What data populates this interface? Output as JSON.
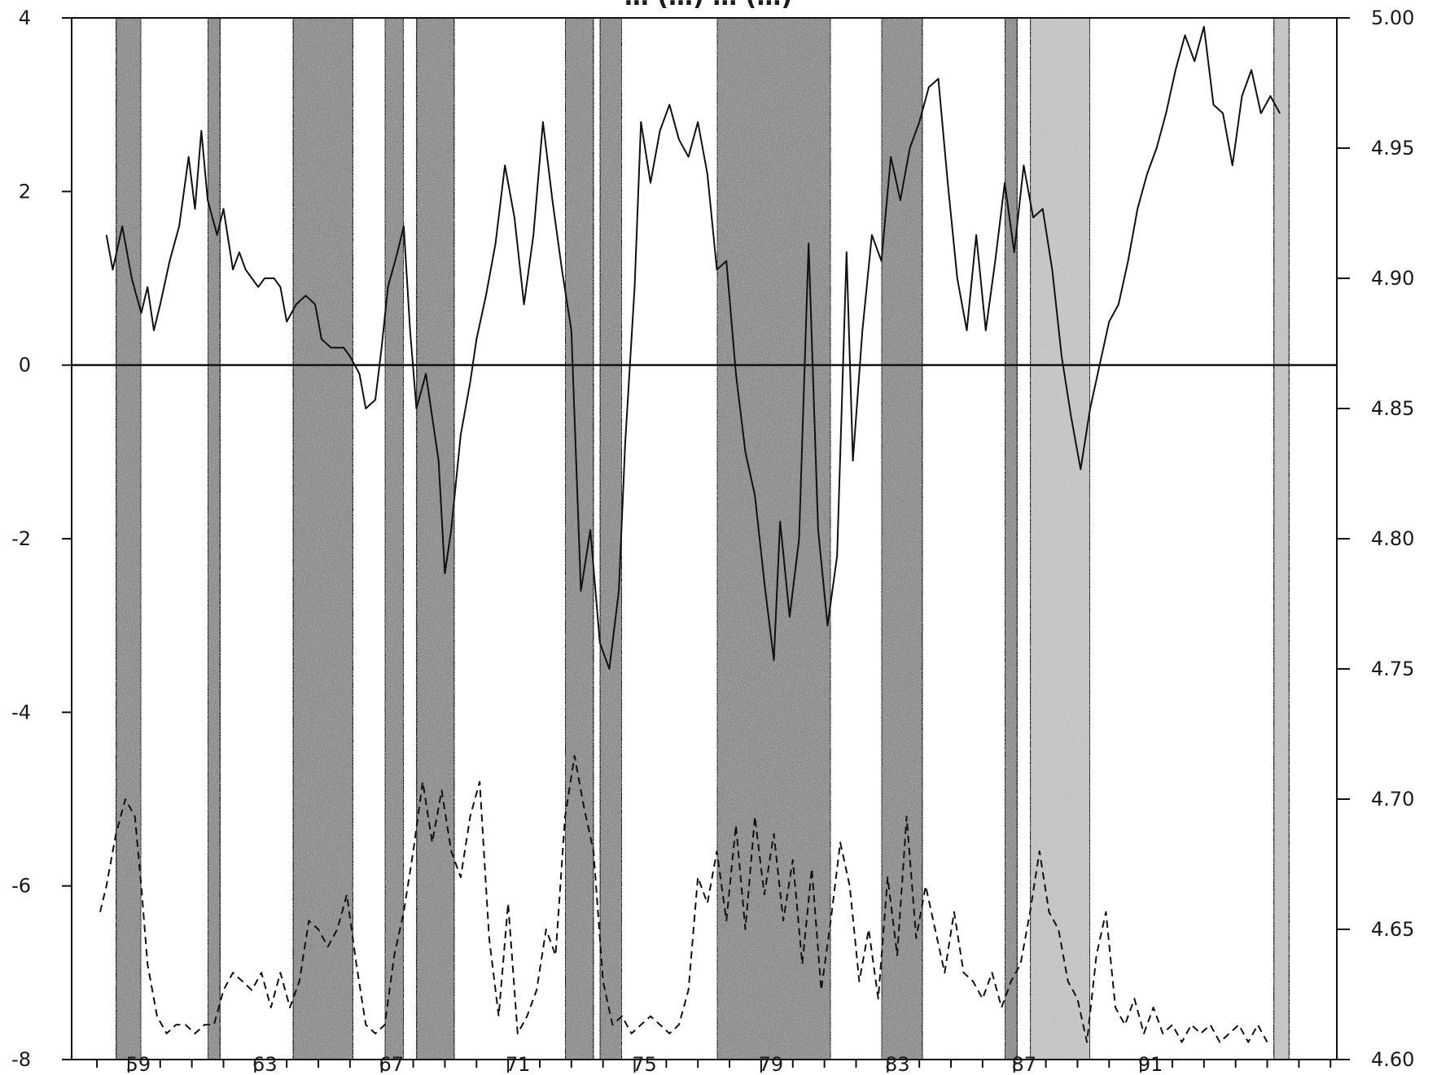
{
  "chart_data": {
    "type": "line",
    "title": "… (…) … (…)",
    "left_axis": {
      "ylim": [
        -8,
        4
      ],
      "ticks": [
        4,
        2,
        0,
        -2,
        -4,
        -6,
        -8
      ],
      "tick_labels": [
        "4",
        "2",
        "0",
        "-2",
        "-4",
        "-6",
        "-8"
      ]
    },
    "right_axis": {
      "ylim": [
        4.6,
        5.0
      ],
      "ticks": [
        5.0,
        4.95,
        4.9,
        4.85,
        4.8,
        4.75,
        4.7,
        4.65,
        4.6
      ],
      "tick_labels": [
        "5.00",
        "4.95",
        "4.90",
        "4.85",
        "4.80",
        "4.75",
        "4.70",
        "4.65",
        "4.60"
      ]
    },
    "x_axis": {
      "xlim": [
        57.2,
        97.2
      ],
      "ticks": [
        59,
        63,
        67,
        71,
        75,
        79,
        83,
        87,
        91
      ],
      "tick_labels": [
        "59",
        "63",
        "67",
        "71",
        "75",
        "79",
        "83",
        "87",
        "91"
      ]
    },
    "zero_line": 0,
    "grid": false,
    "legend": "none",
    "colors": {
      "solid_series": "#111111",
      "dashed_series": "#111111",
      "band_light": "#c8c8c8",
      "band_dark": "#8a8a8a"
    },
    "shaded_bands": [
      {
        "start": 58.6,
        "end": 59.4,
        "tone": "dark"
      },
      {
        "start": 61.5,
        "end": 61.9,
        "tone": "dark"
      },
      {
        "start": 64.2,
        "end": 66.1,
        "tone": "dark"
      },
      {
        "start": 67.1,
        "end": 67.7,
        "tone": "dark"
      },
      {
        "start": 68.1,
        "end": 69.3,
        "tone": "dark"
      },
      {
        "start": 72.8,
        "end": 73.7,
        "tone": "dark"
      },
      {
        "start": 73.9,
        "end": 74.6,
        "tone": "dark"
      },
      {
        "start": 77.6,
        "end": 81.2,
        "tone": "dark"
      },
      {
        "start": 82.8,
        "end": 84.1,
        "tone": "dark"
      },
      {
        "start": 86.7,
        "end": 87.1,
        "tone": "dark"
      },
      {
        "start": 87.5,
        "end": 89.4,
        "tone": "light"
      },
      {
        "start": 95.2,
        "end": 95.7,
        "tone": "light"
      }
    ],
    "series": [
      {
        "line_style": "solid",
        "axis": "left",
        "points": [
          [
            58.3,
            1.5
          ],
          [
            58.5,
            1.1
          ],
          [
            58.8,
            1.6
          ],
          [
            59.1,
            1.0
          ],
          [
            59.4,
            0.6
          ],
          [
            59.6,
            0.9
          ],
          [
            59.8,
            0.4
          ],
          [
            60.0,
            0.7
          ],
          [
            60.3,
            1.2
          ],
          [
            60.6,
            1.6
          ],
          [
            60.9,
            2.4
          ],
          [
            61.1,
            1.8
          ],
          [
            61.3,
            2.7
          ],
          [
            61.5,
            1.9
          ],
          [
            61.8,
            1.5
          ],
          [
            62.0,
            1.8
          ],
          [
            62.3,
            1.1
          ],
          [
            62.5,
            1.3
          ],
          [
            62.7,
            1.1
          ],
          [
            62.9,
            1.0
          ],
          [
            63.1,
            0.9
          ],
          [
            63.3,
            1.0
          ],
          [
            63.6,
            1.0
          ],
          [
            63.8,
            0.9
          ],
          [
            64.0,
            0.5
          ],
          [
            64.3,
            0.7
          ],
          [
            64.6,
            0.8
          ],
          [
            64.9,
            0.7
          ],
          [
            65.1,
            0.3
          ],
          [
            65.4,
            0.2
          ],
          [
            65.8,
            0.2
          ],
          [
            66.0,
            0.1
          ],
          [
            66.3,
            -0.1
          ],
          [
            66.5,
            -0.5
          ],
          [
            66.8,
            -0.4
          ],
          [
            67.0,
            0.2
          ],
          [
            67.2,
            0.9
          ],
          [
            67.5,
            1.3
          ],
          [
            67.7,
            1.6
          ],
          [
            67.9,
            0.4
          ],
          [
            68.1,
            -0.5
          ],
          [
            68.4,
            -0.1
          ],
          [
            68.6,
            -0.6
          ],
          [
            68.8,
            -1.1
          ],
          [
            69.0,
            -2.4
          ],
          [
            69.2,
            -1.9
          ],
          [
            69.5,
            -0.8
          ],
          [
            69.8,
            -0.2
          ],
          [
            70.0,
            0.3
          ],
          [
            70.3,
            0.8
          ],
          [
            70.6,
            1.4
          ],
          [
            70.9,
            2.3
          ],
          [
            71.2,
            1.7
          ],
          [
            71.5,
            0.7
          ],
          [
            71.8,
            1.5
          ],
          [
            72.1,
            2.8
          ],
          [
            72.4,
            1.9
          ],
          [
            72.7,
            1.1
          ],
          [
            73.0,
            0.4
          ],
          [
            73.3,
            -2.6
          ],
          [
            73.6,
            -1.9
          ],
          [
            73.9,
            -3.2
          ],
          [
            74.2,
            -3.5
          ],
          [
            74.5,
            -2.6
          ],
          [
            74.7,
            -0.9
          ],
          [
            75.0,
            0.9
          ],
          [
            75.2,
            2.8
          ],
          [
            75.5,
            2.1
          ],
          [
            75.8,
            2.7
          ],
          [
            76.1,
            3.0
          ],
          [
            76.4,
            2.6
          ],
          [
            76.7,
            2.4
          ],
          [
            77.0,
            2.8
          ],
          [
            77.3,
            2.2
          ],
          [
            77.6,
            1.1
          ],
          [
            77.9,
            1.2
          ],
          [
            78.2,
            -0.1
          ],
          [
            78.5,
            -1.0
          ],
          [
            78.8,
            -1.5
          ],
          [
            79.1,
            -2.5
          ],
          [
            79.4,
            -3.4
          ],
          [
            79.6,
            -1.8
          ],
          [
            79.9,
            -2.9
          ],
          [
            80.2,
            -2.0
          ],
          [
            80.5,
            1.4
          ],
          [
            80.8,
            -1.9
          ],
          [
            81.1,
            -3.0
          ],
          [
            81.4,
            -2.2
          ],
          [
            81.7,
            1.3
          ],
          [
            81.9,
            -1.1
          ],
          [
            82.2,
            0.4
          ],
          [
            82.5,
            1.5
          ],
          [
            82.8,
            1.2
          ],
          [
            83.1,
            2.4
          ],
          [
            83.4,
            1.9
          ],
          [
            83.7,
            2.5
          ],
          [
            84.0,
            2.8
          ],
          [
            84.3,
            3.2
          ],
          [
            84.6,
            3.3
          ],
          [
            84.9,
            2.1
          ],
          [
            85.2,
            1.0
          ],
          [
            85.5,
            0.4
          ],
          [
            85.8,
            1.5
          ],
          [
            86.1,
            0.4
          ],
          [
            86.4,
            1.2
          ],
          [
            86.7,
            2.1
          ],
          [
            87.0,
            1.3
          ],
          [
            87.3,
            2.3
          ],
          [
            87.6,
            1.7
          ],
          [
            87.9,
            1.8
          ],
          [
            88.2,
            1.1
          ],
          [
            88.5,
            0.1
          ],
          [
            88.8,
            -0.6
          ],
          [
            89.1,
            -1.2
          ],
          [
            89.4,
            -0.5
          ],
          [
            89.7,
            0.0
          ],
          [
            90.0,
            0.5
          ],
          [
            90.3,
            0.7
          ],
          [
            90.6,
            1.2
          ],
          [
            90.9,
            1.8
          ],
          [
            91.2,
            2.2
          ],
          [
            91.5,
            2.5
          ],
          [
            91.8,
            2.9
          ],
          [
            92.1,
            3.4
          ],
          [
            92.4,
            3.8
          ],
          [
            92.7,
            3.5
          ],
          [
            93.0,
            3.9
          ],
          [
            93.3,
            3.0
          ],
          [
            93.6,
            2.9
          ],
          [
            93.9,
            2.3
          ],
          [
            94.2,
            3.1
          ],
          [
            94.5,
            3.4
          ],
          [
            94.8,
            2.9
          ],
          [
            95.1,
            3.1
          ],
          [
            95.4,
            2.9
          ]
        ]
      },
      {
        "line_style": "dashed",
        "axis": "left",
        "points": [
          [
            58.1,
            -6.3
          ],
          [
            58.3,
            -6.0
          ],
          [
            58.6,
            -5.4
          ],
          [
            58.9,
            -5.0
          ],
          [
            59.2,
            -5.2
          ],
          [
            59.4,
            -6.0
          ],
          [
            59.6,
            -6.9
          ],
          [
            59.9,
            -7.5
          ],
          [
            60.2,
            -7.7
          ],
          [
            60.5,
            -7.6
          ],
          [
            60.8,
            -7.6
          ],
          [
            61.1,
            -7.7
          ],
          [
            61.4,
            -7.6
          ],
          [
            61.7,
            -7.6
          ],
          [
            62.0,
            -7.2
          ],
          [
            62.3,
            -7.0
          ],
          [
            62.6,
            -7.1
          ],
          [
            62.9,
            -7.2
          ],
          [
            63.2,
            -7.0
          ],
          [
            63.5,
            -7.4
          ],
          [
            63.8,
            -7.0
          ],
          [
            64.1,
            -7.4
          ],
          [
            64.4,
            -7.1
          ],
          [
            64.7,
            -6.4
          ],
          [
            65.0,
            -6.5
          ],
          [
            65.3,
            -6.7
          ],
          [
            65.6,
            -6.5
          ],
          [
            65.9,
            -6.1
          ],
          [
            66.2,
            -6.9
          ],
          [
            66.5,
            -7.6
          ],
          [
            66.8,
            -7.7
          ],
          [
            67.1,
            -7.6
          ],
          [
            67.4,
            -6.8
          ],
          [
            67.7,
            -6.3
          ],
          [
            68.0,
            -5.6
          ],
          [
            68.3,
            -4.8
          ],
          [
            68.6,
            -5.5
          ],
          [
            68.9,
            -4.9
          ],
          [
            69.2,
            -5.6
          ],
          [
            69.5,
            -5.9
          ],
          [
            69.8,
            -5.2
          ],
          [
            70.1,
            -4.8
          ],
          [
            70.4,
            -6.6
          ],
          [
            70.7,
            -7.5
          ],
          [
            71.0,
            -6.2
          ],
          [
            71.3,
            -7.7
          ],
          [
            71.6,
            -7.5
          ],
          [
            71.9,
            -7.2
          ],
          [
            72.2,
            -6.5
          ],
          [
            72.5,
            -6.8
          ],
          [
            72.8,
            -5.2
          ],
          [
            73.1,
            -4.5
          ],
          [
            73.4,
            -5.1
          ],
          [
            73.7,
            -5.6
          ],
          [
            74.0,
            -7.1
          ],
          [
            74.3,
            -7.6
          ],
          [
            74.6,
            -7.5
          ],
          [
            74.9,
            -7.7
          ],
          [
            75.2,
            -7.6
          ],
          [
            75.5,
            -7.5
          ],
          [
            75.8,
            -7.6
          ],
          [
            76.1,
            -7.7
          ],
          [
            76.4,
            -7.6
          ],
          [
            76.7,
            -7.2
          ],
          [
            77.0,
            -5.9
          ],
          [
            77.3,
            -6.2
          ],
          [
            77.6,
            -5.6
          ],
          [
            77.9,
            -6.4
          ],
          [
            78.2,
            -5.3
          ],
          [
            78.5,
            -6.5
          ],
          [
            78.8,
            -5.2
          ],
          [
            79.1,
            -6.1
          ],
          [
            79.4,
            -5.4
          ],
          [
            79.7,
            -6.4
          ],
          [
            80.0,
            -5.7
          ],
          [
            80.3,
            -6.9
          ],
          [
            80.6,
            -5.8
          ],
          [
            80.9,
            -7.2
          ],
          [
            81.2,
            -6.4
          ],
          [
            81.5,
            -5.5
          ],
          [
            81.8,
            -6.0
          ],
          [
            82.1,
            -7.1
          ],
          [
            82.4,
            -6.5
          ],
          [
            82.7,
            -7.3
          ],
          [
            83.0,
            -5.9
          ],
          [
            83.3,
            -6.8
          ],
          [
            83.6,
            -5.2
          ],
          [
            83.9,
            -6.6
          ],
          [
            84.2,
            -6.0
          ],
          [
            84.5,
            -6.5
          ],
          [
            84.8,
            -7.0
          ],
          [
            85.1,
            -6.3
          ],
          [
            85.4,
            -7.0
          ],
          [
            85.7,
            -7.1
          ],
          [
            86.0,
            -7.3
          ],
          [
            86.3,
            -7.0
          ],
          [
            86.6,
            -7.4
          ],
          [
            86.9,
            -7.1
          ],
          [
            87.2,
            -6.9
          ],
          [
            87.5,
            -6.3
          ],
          [
            87.8,
            -5.6
          ],
          [
            88.1,
            -6.3
          ],
          [
            88.4,
            -6.5
          ],
          [
            88.7,
            -7.1
          ],
          [
            89.0,
            -7.3
          ],
          [
            89.3,
            -7.8
          ],
          [
            89.6,
            -6.8
          ],
          [
            89.9,
            -6.3
          ],
          [
            90.2,
            -7.4
          ],
          [
            90.5,
            -7.6
          ],
          [
            90.8,
            -7.3
          ],
          [
            91.1,
            -7.7
          ],
          [
            91.4,
            -7.4
          ],
          [
            91.7,
            -7.7
          ],
          [
            92.0,
            -7.6
          ],
          [
            92.3,
            -7.8
          ],
          [
            92.6,
            -7.6
          ],
          [
            92.9,
            -7.7
          ],
          [
            93.2,
            -7.6
          ],
          [
            93.5,
            -7.8
          ],
          [
            93.8,
            -7.7
          ],
          [
            94.1,
            -7.6
          ],
          [
            94.4,
            -7.8
          ],
          [
            94.7,
            -7.6
          ],
          [
            95.0,
            -7.8
          ]
        ]
      }
    ]
  }
}
